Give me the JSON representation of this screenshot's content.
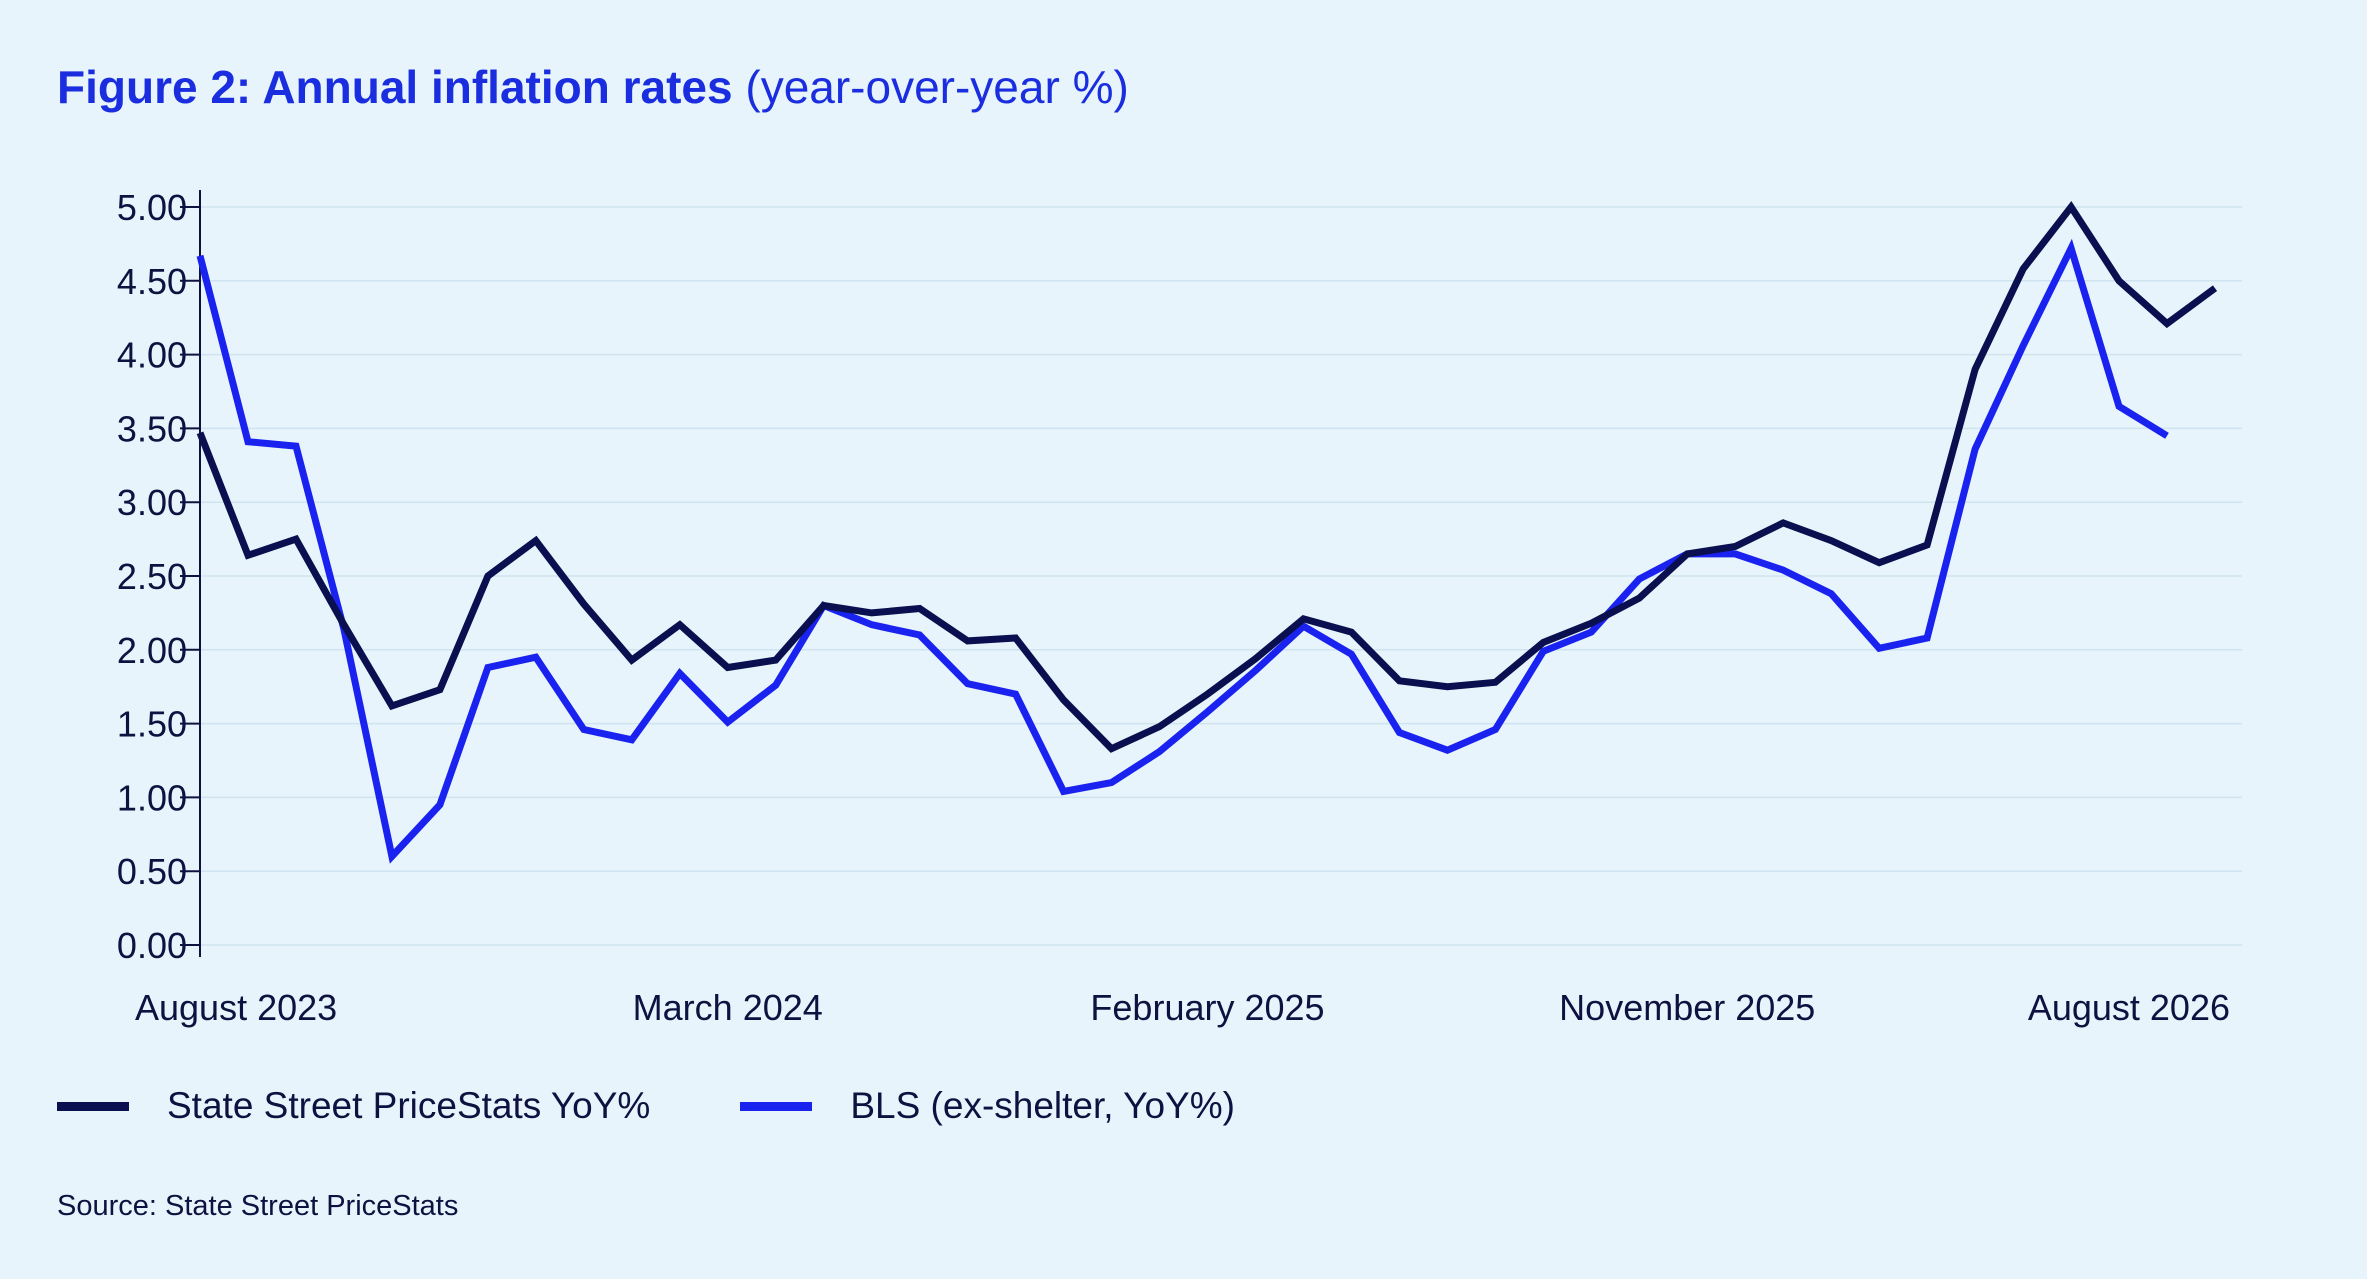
{
  "title": {
    "bold": "Figure 2: Annual inflation rates",
    "light": "(year-over-year %)"
  },
  "source": "Source: State Street PriceStats",
  "colors": {
    "background": "#e8f4fb",
    "title": "#1a2ee0",
    "text": "#0d1240",
    "grid": "#cfe3f0",
    "axis": "#0d1240"
  },
  "chart_data": {
    "type": "line",
    "title": "Figure 2: Annual inflation rates (year-over-year %)",
    "xlabel": "",
    "ylabel": "",
    "ylim": [
      0,
      5
    ],
    "yticks": [
      "0.00",
      "0.50",
      "1.00",
      "1.50",
      "2.00",
      "2.50",
      "3.00",
      "3.50",
      "4.00",
      "4.50",
      "5.00"
    ],
    "x_tick_labels": [
      {
        "label": "August 2023",
        "index": 0
      },
      {
        "label": "March 2024",
        "index": 11
      },
      {
        "label": "February 2025",
        "index": 21
      },
      {
        "label": "November 2025",
        "index": 31
      },
      {
        "label": "August 2026",
        "index": 41
      }
    ],
    "grid": true,
    "legend_position": "bottom-left",
    "series": [
      {
        "name": "State Street PriceStats YoY%",
        "color": "#0a0f4f",
        "values": [
          3.47,
          2.64,
          2.75,
          2.17,
          1.62,
          1.73,
          2.5,
          2.74,
          2.31,
          1.93,
          2.17,
          1.88,
          1.93,
          2.3,
          2.25,
          2.28,
          2.06,
          2.08,
          1.66,
          1.33,
          1.48,
          1.7,
          1.94,
          2.21,
          2.12,
          1.79,
          1.75,
          1.78,
          2.05,
          2.18,
          2.35,
          2.65,
          2.7,
          2.86,
          2.74,
          2.59,
          2.71,
          3.9,
          4.58,
          5.0,
          4.5,
          4.21,
          4.45
        ]
      },
      {
        "name": "BLS (ex-shelter, YoY%)",
        "color": "#1a22f0",
        "values": [
          4.67,
          3.41,
          3.38,
          2.14,
          0.6,
          0.95,
          1.88,
          1.95,
          1.46,
          1.39,
          1.84,
          1.51,
          1.76,
          2.3,
          2.17,
          2.1,
          1.77,
          1.7,
          1.04,
          1.1,
          1.31,
          1.58,
          1.86,
          2.16,
          1.97,
          1.44,
          1.32,
          1.46,
          1.99,
          2.12,
          2.48,
          2.65,
          2.65,
          2.54,
          2.38,
          2.01,
          2.08,
          3.36,
          4.06,
          4.72,
          3.65,
          3.45
        ]
      }
    ]
  }
}
